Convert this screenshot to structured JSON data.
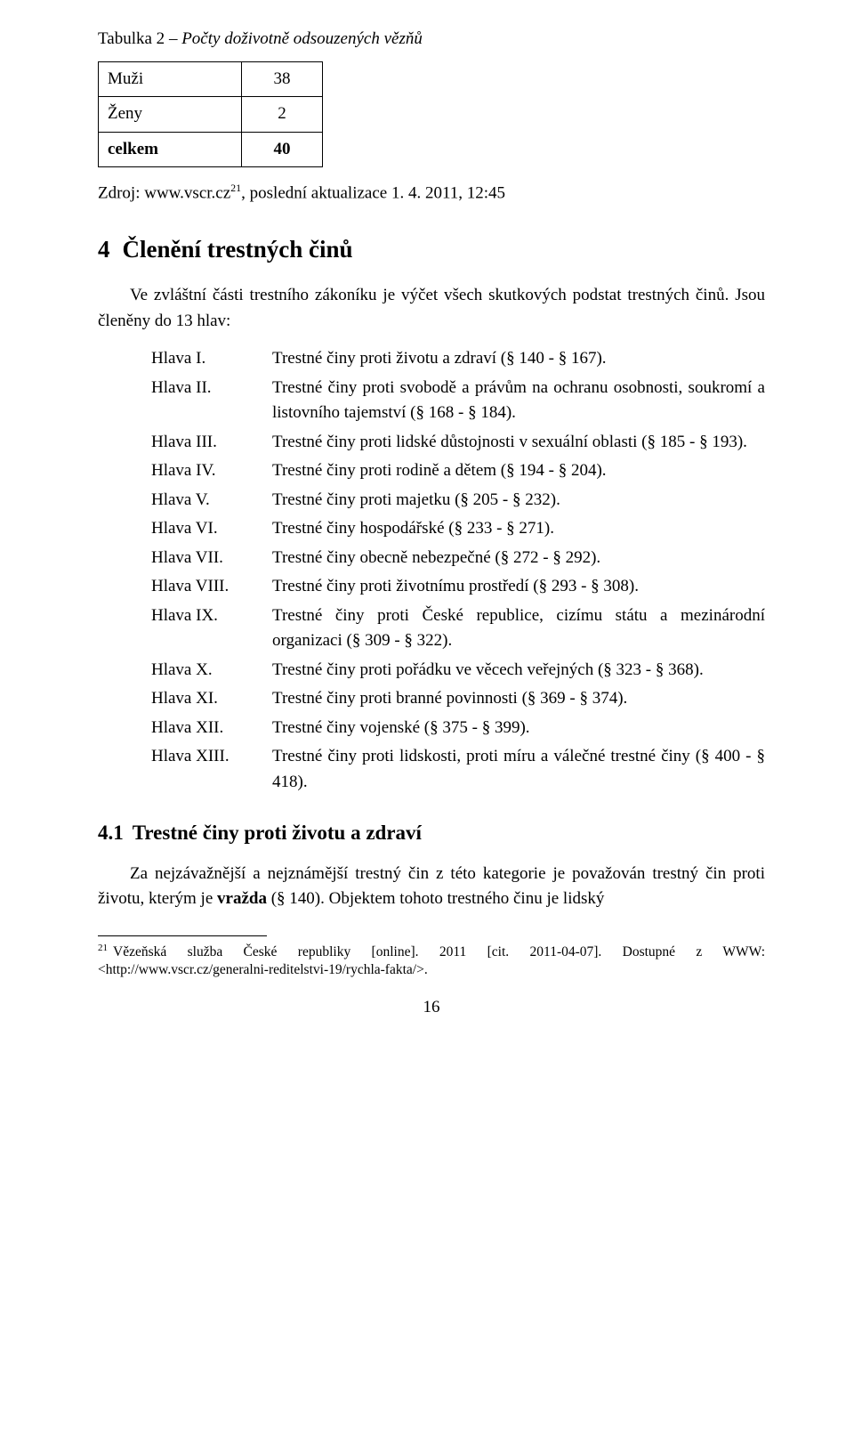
{
  "caption_prefix": "Tabulka 2",
  "caption_title": " – Počty doživotně odsouzených vězňů",
  "table": {
    "rows": [
      {
        "label": "Muži",
        "value": "38",
        "bold": false
      },
      {
        "label": "Ženy",
        "value": "2",
        "bold": false
      },
      {
        "label": "celkem",
        "value": "40",
        "bold": true
      }
    ]
  },
  "source_prefix": "Zdroj: www.vscr.cz",
  "source_sup": "21",
  "source_suffix": ", poslední aktualizace 1. 4. 2011, 12:45",
  "section": {
    "num": "4",
    "title": "Členění trestných činů",
    "intro": "Ve zvláštní části trestního zákoníku je výčet všech skutkových podstat trestných činů. Jsou členěny do 13 hlav:",
    "hlavy": [
      {
        "label": "Hlava I.",
        "desc": "Trestné činy proti životu a zdraví (§ 140 - § 167)."
      },
      {
        "label": "Hlava II.",
        "desc": "Trestné činy proti svobodě a právům na ochranu osobnosti, soukromí a listovního tajemství (§ 168 - § 184)."
      },
      {
        "label": "Hlava III.",
        "desc": "Trestné činy proti lidské důstojnosti v sexuální oblasti (§ 185 - § 193)."
      },
      {
        "label": "Hlava IV.",
        "desc": "Trestné činy proti rodině a dětem (§ 194 - § 204)."
      },
      {
        "label": "Hlava V.",
        "desc": "Trestné činy proti majetku (§ 205 - § 232)."
      },
      {
        "label": "Hlava VI.",
        "desc": "Trestné činy hospodářské (§ 233 - § 271)."
      },
      {
        "label": "Hlava VII.",
        "desc": "Trestné činy obecně nebezpečné (§ 272 - § 292)."
      },
      {
        "label": "Hlava VIII.",
        "desc": "Trestné činy proti životnímu prostředí (§ 293 - § 308)."
      },
      {
        "label": "Hlava IX.",
        "desc": "Trestné činy proti České republice, cizímu státu a mezinárodní organizaci (§ 309 - § 322)."
      },
      {
        "label": "Hlava X.",
        "desc": "Trestné činy proti pořádku ve věcech veřejných (§ 323 - § 368)."
      },
      {
        "label": "Hlava XI.",
        "desc": "Trestné činy proti branné povinnosti (§ 369 - § 374)."
      },
      {
        "label": "Hlava XII.",
        "desc": "Trestné činy vojenské (§ 375 - § 399)."
      },
      {
        "label": "Hlava XIII.",
        "desc": "Trestné činy proti lidskosti, proti míru a válečné trestné činy (§ 400 - § 418)."
      }
    ]
  },
  "subsection": {
    "num": "4.1",
    "title": "Trestné činy proti životu a zdraví",
    "para_start": "Za nejzávažnější a nejznámější trestný čin z této kategorie je považován trestný čin proti životu, kterým je ",
    "para_bold": "vražda",
    "para_end": " (§ 140). Objektem tohoto trestného činu je lidský"
  },
  "footnote": {
    "num": "21",
    "text": "Vězeňská služba České republiky [online]. 2011 [cit. 2011-04-07]. Dostupné z WWW: <http://www.vscr.cz/generalni-reditelstvi-19/rychla-fakta/>."
  },
  "page_number": "16"
}
